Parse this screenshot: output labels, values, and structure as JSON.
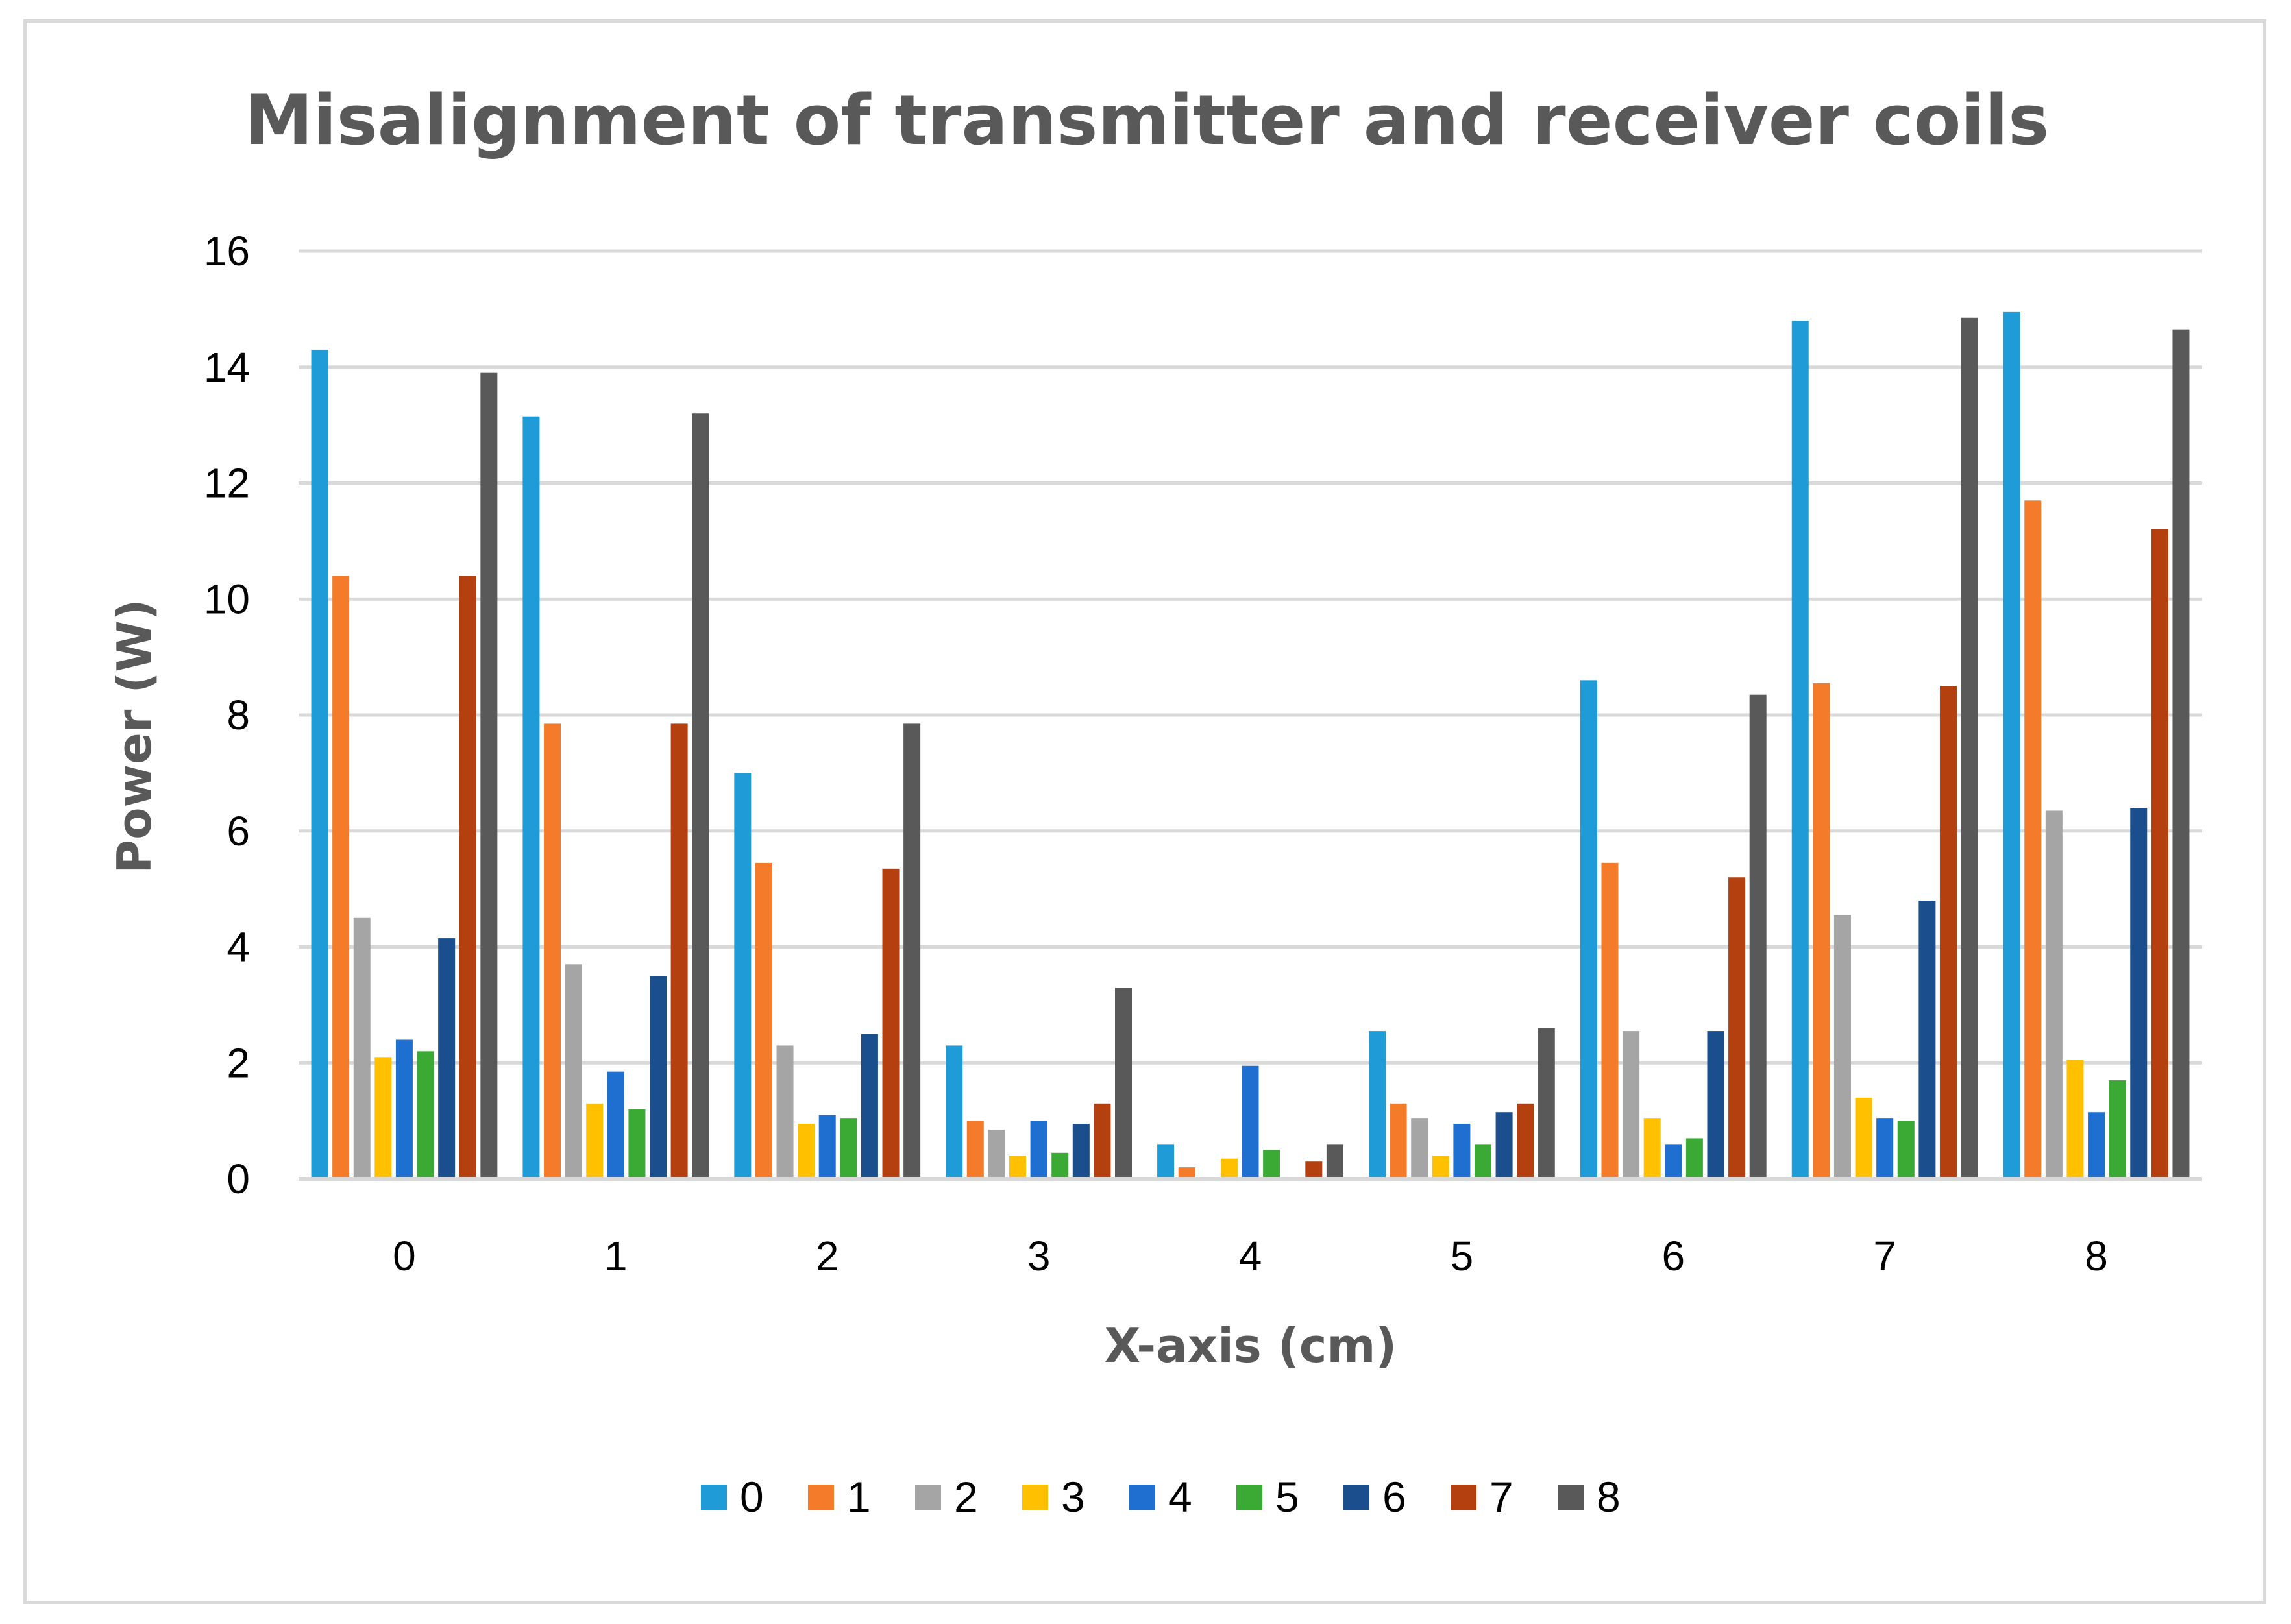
{
  "chart_data": {
    "type": "bar",
    "title": "Misalignment of transmitter and receiver coils",
    "xlabel": "X-axis (cm)",
    "ylabel": "Power (W)",
    "ylim": [
      0,
      16
    ],
    "yticks": [
      0,
      2,
      4,
      6,
      8,
      10,
      12,
      14,
      16
    ],
    "grid": true,
    "legend_position": "bottom",
    "categories": [
      "0",
      "1",
      "2",
      "3",
      "4",
      "5",
      "6",
      "7",
      "8"
    ],
    "series": [
      {
        "name": "0",
        "color": "#1F9BD7",
        "values": [
          14.3,
          13.15,
          7.0,
          2.3,
          0.6,
          2.55,
          8.6,
          14.8,
          14.95
        ]
      },
      {
        "name": "1",
        "color": "#F47B2A",
        "values": [
          10.4,
          7.85,
          5.45,
          1.0,
          0.2,
          1.3,
          5.45,
          8.55,
          11.7
        ]
      },
      {
        "name": "2",
        "color": "#A5A5A5",
        "values": [
          4.5,
          3.7,
          2.3,
          0.85,
          0.0,
          1.05,
          2.55,
          4.55,
          6.35
        ]
      },
      {
        "name": "3",
        "color": "#FFC000",
        "values": [
          2.1,
          1.3,
          0.95,
          0.4,
          0.35,
          0.4,
          1.05,
          1.4,
          2.05
        ]
      },
      {
        "name": "4",
        "color": "#1F6FD0",
        "values": [
          2.4,
          1.85,
          1.1,
          1.0,
          1.95,
          0.95,
          0.6,
          1.05,
          1.15
        ]
      },
      {
        "name": "5",
        "color": "#3AAA35",
        "values": [
          2.2,
          1.2,
          1.05,
          0.45,
          0.5,
          0.6,
          0.7,
          1.0,
          1.7
        ]
      },
      {
        "name": "6",
        "color": "#1A4E8C",
        "values": [
          4.15,
          3.5,
          2.5,
          0.95,
          0.0,
          1.15,
          2.55,
          4.8,
          6.4
        ]
      },
      {
        "name": "7",
        "color": "#B5400F",
        "values": [
          10.4,
          7.85,
          5.35,
          1.3,
          0.3,
          1.3,
          5.2,
          8.5,
          11.2
        ]
      },
      {
        "name": "8",
        "color": "#595959",
        "values": [
          13.9,
          13.2,
          7.85,
          3.3,
          0.6,
          2.6,
          8.35,
          14.85,
          14.65
        ]
      }
    ]
  }
}
